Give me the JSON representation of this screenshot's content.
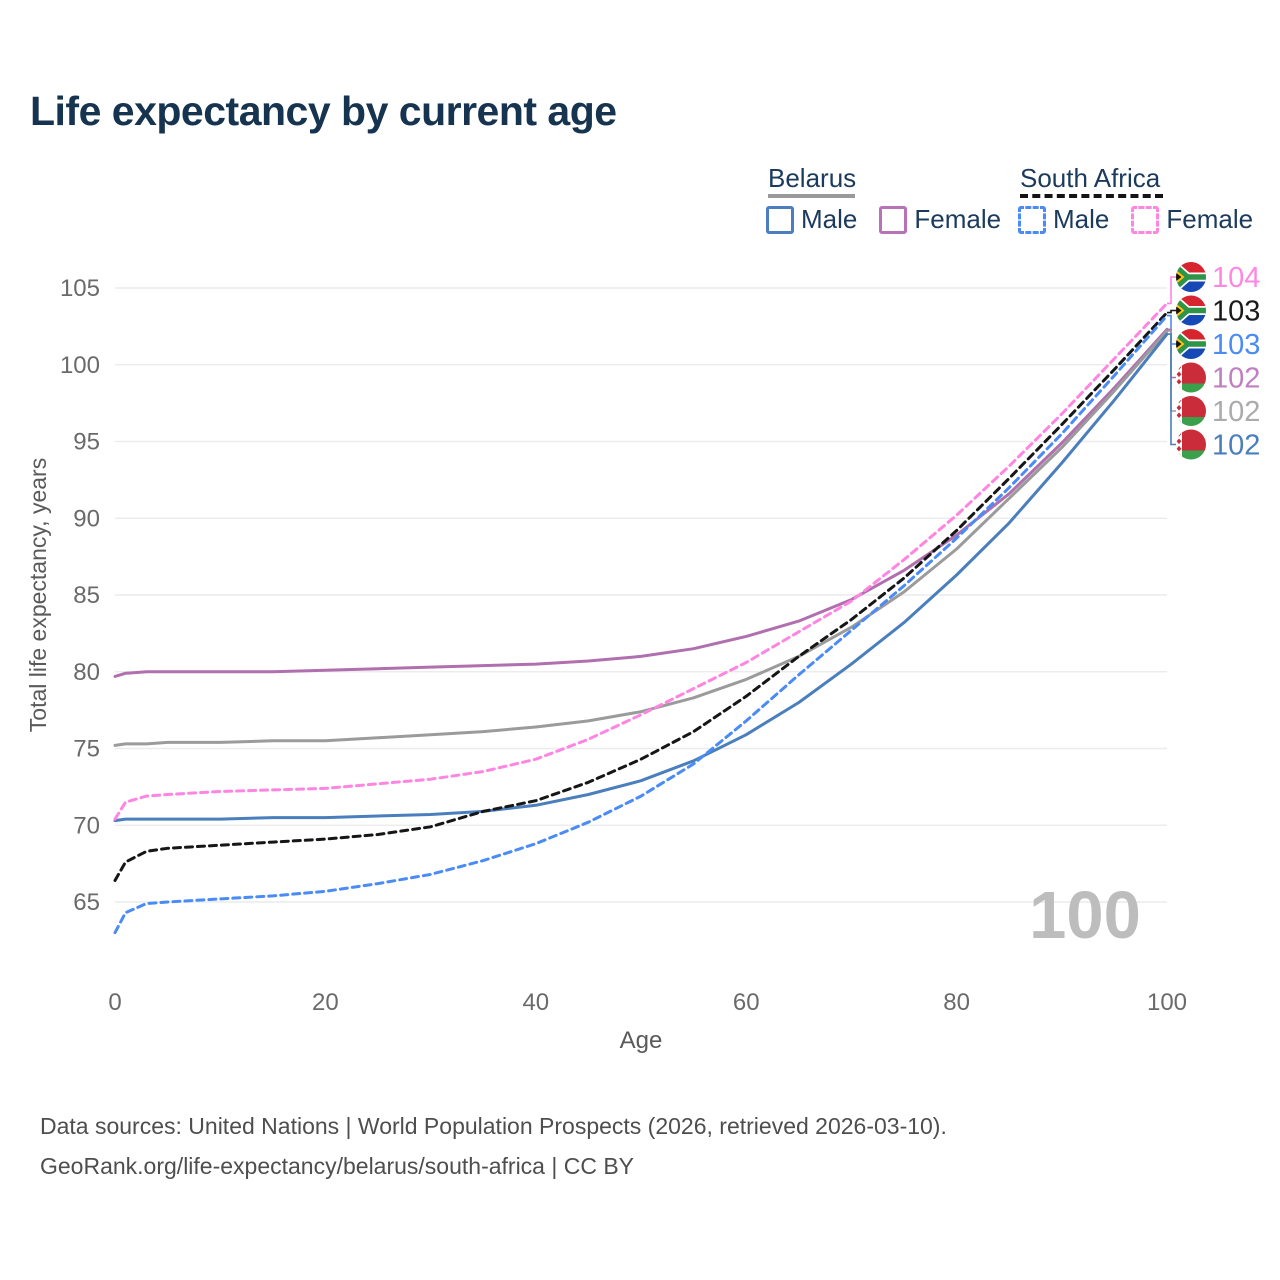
{
  "page": {
    "title": "Life expectancy by current age",
    "footer_line1": "Data sources: United Nations | World Population Prospects (2026, retrieved 2026-03-10).",
    "footer_line2": "GeoRank.org/life-expectancy/belarus/south-africa | CC BY"
  },
  "legend": {
    "groups": [
      {
        "id": "belarus",
        "label": "Belarus",
        "line_style": "solid",
        "line_color": "#9a9a9a",
        "items": [
          {
            "label": "Male",
            "swatch_color": "#4a7ebc",
            "swatch_style": "solid"
          },
          {
            "label": "Female",
            "swatch_color": "#b873b8",
            "swatch_style": "solid"
          }
        ]
      },
      {
        "id": "south-africa",
        "label": "South Africa",
        "line_style": "dashed",
        "line_color": "#141414",
        "items": [
          {
            "label": "Male",
            "swatch_color": "#4b8bf5",
            "swatch_style": "dashed"
          },
          {
            "label": "Female",
            "swatch_color": "#ff87e1",
            "swatch_style": "dashed"
          }
        ]
      }
    ]
  },
  "chart_data": {
    "type": "line",
    "title": "Life expectancy by current age",
    "xlabel": "Age",
    "ylabel": "Total life expectancy, years",
    "xlim": [
      0,
      100
    ],
    "ylim": [
      65,
      105
    ],
    "xticks": [
      0,
      20,
      40,
      60,
      80,
      100
    ],
    "yticks": [
      65,
      70,
      75,
      80,
      85,
      90,
      95,
      100,
      105
    ],
    "grid": "horizontal",
    "legend_position": "top-right",
    "watermark": "100",
    "ages": [
      0,
      1,
      3,
      5,
      10,
      15,
      20,
      25,
      30,
      35,
      40,
      45,
      50,
      55,
      60,
      65,
      70,
      75,
      80,
      85,
      90,
      95,
      100
    ],
    "series": [
      {
        "id": "belarus-female",
        "name": "Belarus Female",
        "country": "Belarus",
        "sex": "Female",
        "color": "#b06fae",
        "dash": "solid",
        "end_label": "102",
        "values": [
          79.7,
          79.9,
          80.0,
          80.0,
          80.0,
          80.0,
          80.1,
          80.2,
          80.3,
          80.4,
          80.5,
          80.7,
          81.0,
          81.5,
          82.3,
          83.3,
          84.7,
          86.6,
          88.9,
          91.6,
          94.9,
          98.5,
          102.3
        ]
      },
      {
        "id": "belarus-total",
        "name": "Belarus Both sexes",
        "country": "Belarus",
        "sex": "Both",
        "color": "#9b9b9b",
        "dash": "solid",
        "end_label": "102",
        "values": [
          75.2,
          75.3,
          75.3,
          75.4,
          75.4,
          75.5,
          75.5,
          75.7,
          75.9,
          76.1,
          76.4,
          76.8,
          77.4,
          78.3,
          79.5,
          81.0,
          82.9,
          85.2,
          88.0,
          91.3,
          94.6,
          98.3,
          102.2
        ]
      },
      {
        "id": "belarus-male",
        "name": "Belarus Male",
        "country": "Belarus",
        "sex": "Male",
        "color": "#4a7ebc",
        "dash": "solid",
        "end_label": "102",
        "values": [
          70.3,
          70.4,
          70.4,
          70.4,
          70.4,
          70.5,
          70.5,
          70.6,
          70.7,
          70.9,
          71.3,
          72.0,
          72.9,
          74.2,
          75.9,
          78.0,
          80.5,
          83.2,
          86.3,
          89.7,
          93.6,
          97.7,
          102.0
        ]
      },
      {
        "id": "south-africa-female",
        "name": "South Africa Female",
        "country": "South Africa",
        "sex": "Female",
        "color": "#ff85e3",
        "dash": "dashed",
        "end_label": "104",
        "values": [
          70.4,
          71.5,
          71.9,
          72.0,
          72.2,
          72.3,
          72.4,
          72.7,
          73.0,
          73.5,
          74.3,
          75.6,
          77.2,
          78.9,
          80.6,
          82.6,
          84.6,
          87.3,
          90.2,
          93.4,
          96.8,
          100.4,
          104.0
        ]
      },
      {
        "id": "south-africa-total",
        "name": "South Africa Both sexes",
        "country": "South Africa",
        "sex": "Both",
        "color": "#161616",
        "dash": "dashed",
        "end_label": "103",
        "values": [
          66.4,
          67.6,
          68.3,
          68.5,
          68.7,
          68.9,
          69.1,
          69.4,
          69.9,
          70.9,
          71.6,
          72.8,
          74.3,
          76.1,
          78.4,
          81.0,
          83.4,
          86.1,
          89.2,
          92.6,
          96.1,
          99.7,
          103.4
        ]
      },
      {
        "id": "south-africa-male",
        "name": "South Africa Male",
        "country": "South Africa",
        "sex": "Male",
        "color": "#4b8bf5",
        "dash": "dashed",
        "end_label": "103",
        "values": [
          63.0,
          64.3,
          64.9,
          65.0,
          65.2,
          65.4,
          65.7,
          66.2,
          66.8,
          67.7,
          68.8,
          70.2,
          71.9,
          74.0,
          76.8,
          79.8,
          82.7,
          85.6,
          88.7,
          92.0,
          95.5,
          99.3,
          103.2
        ]
      }
    ],
    "annotations": [
      {
        "series": "south-africa-female",
        "label": "104",
        "label_color": "#ff87e1",
        "flag": "south-africa"
      },
      {
        "series": "south-africa-total",
        "label": "103",
        "label_color": "#1a1a1a",
        "flag": "south-africa"
      },
      {
        "series": "south-africa-male",
        "label": "103",
        "label_color": "#4b8bf5",
        "flag": "south-africa"
      },
      {
        "series": "belarus-female",
        "label": "102",
        "label_color": "#c07fc0",
        "flag": "belarus"
      },
      {
        "series": "belarus-total",
        "label": "102",
        "label_color": "#ababab",
        "flag": "belarus"
      },
      {
        "series": "belarus-male",
        "label": "102",
        "label_color": "#4a7ebc",
        "flag": "belarus"
      }
    ]
  }
}
